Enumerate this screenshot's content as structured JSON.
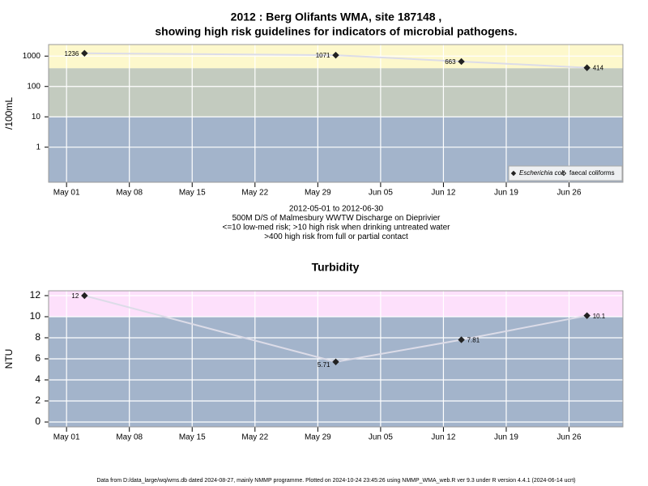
{
  "chart_data": [
    {
      "type": "line",
      "title": "2012 : Berg Olifants WMA, site 187148 ,",
      "subtitle": "showing high risk guidelines for indicators of microbial pathogens.",
      "y_label": "/100mL",
      "log_y": true,
      "x": [
        "2012-05-03",
        "2012-05-31",
        "2012-06-14",
        "2012-06-28"
      ],
      "xlim": [
        "2012-04-29",
        "2012-07-02"
      ],
      "xticks": [
        {
          "value": "2012-05-01",
          "label": "May 01"
        },
        {
          "value": "2012-05-08",
          "label": "May 08"
        },
        {
          "value": "2012-05-15",
          "label": "May 15"
        },
        {
          "value": "2012-05-22",
          "label": "May 22"
        },
        {
          "value": "2012-05-29",
          "label": "May 29"
        },
        {
          "value": "2012-06-05",
          "label": "Jun 05"
        },
        {
          "value": "2012-06-12",
          "label": "Jun 12"
        },
        {
          "value": "2012-06-19",
          "label": "Jun 19"
        },
        {
          "value": "2012-06-26",
          "label": "Jun 26"
        }
      ],
      "ylim": [
        0.07,
        2400
      ],
      "yticks": [
        1,
        10,
        100,
        1000
      ],
      "grid": true,
      "risk_thresholds": [
        10,
        400
      ],
      "band_colors": [
        "#a3b4cb",
        "#c3cbbf",
        "#fdf8cc"
      ],
      "line_color": "#dcdce8",
      "series": [
        {
          "name": "Escherichia coli",
          "marker": "filled",
          "color": "#222222",
          "values": [
            1236,
            1071,
            663,
            414
          ]
        },
        {
          "name": "faecal coliforms",
          "marker": "open",
          "color": "#222222",
          "values": [
            null,
            null,
            null,
            null
          ]
        }
      ],
      "legend": "bottom-right",
      "notes": [
        "2012-05-01 to 2012-06-30",
        "500M D/S of Malmesbury WWTW Discharge on Dieprivier",
        "<=10 low-med risk; >10 high risk when drinking untreated water",
        ">400 high risk from full or partial contact"
      ]
    },
    {
      "type": "line",
      "title": "Turbidity",
      "y_label": "NTU",
      "log_y": false,
      "x": [
        "2012-05-03",
        "2012-05-31",
        "2012-06-14",
        "2012-06-28"
      ],
      "xlim": [
        "2012-04-29",
        "2012-07-02"
      ],
      "xticks": [
        {
          "value": "2012-05-01",
          "label": "May 01"
        },
        {
          "value": "2012-05-08",
          "label": "May 08"
        },
        {
          "value": "2012-05-15",
          "label": "May 15"
        },
        {
          "value": "2012-05-22",
          "label": "May 22"
        },
        {
          "value": "2012-05-29",
          "label": "May 29"
        },
        {
          "value": "2012-06-05",
          "label": "Jun 05"
        },
        {
          "value": "2012-06-12",
          "label": "Jun 12"
        },
        {
          "value": "2012-06-19",
          "label": "Jun 19"
        },
        {
          "value": "2012-06-26",
          "label": "Jun 26"
        }
      ],
      "ylim": [
        -0.46,
        12.46
      ],
      "yticks": [
        0,
        2,
        4,
        6,
        8,
        10,
        12
      ],
      "grid": true,
      "risk_thresholds": [
        10
      ],
      "band_colors": [
        "#a3b4cb",
        "#fde0fb"
      ],
      "line_color": "#dcdce8",
      "series": [
        {
          "name": "Turbidity",
          "marker": "filled",
          "color": "#222222",
          "values": [
            12,
            5.71,
            7.81,
            10.1
          ]
        }
      ]
    }
  ],
  "footer": "Data from D:/data_large/wq/wms.db dated 2024-08-27, mainly NMMP programme. Plotted on 2024-10-24 23:45:26 using NMMP_WMA_web.R ver 9.3 under R version 4.4.1 (2024-06-14 ucrt)"
}
